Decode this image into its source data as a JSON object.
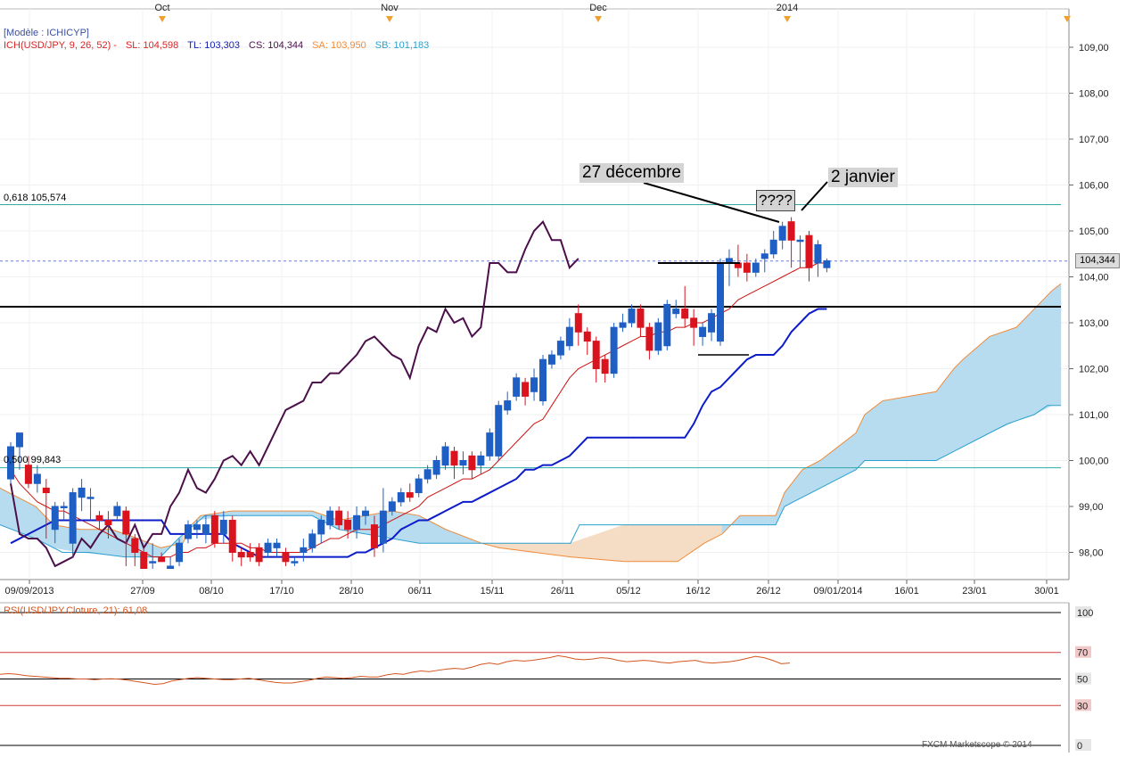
{
  "colors": {
    "bull": "#1f5fc4",
    "bear": "#d9141e",
    "tenkan": "#cc1111",
    "kijun": "#0c1cc8",
    "chikou": "#4b0f4a",
    "span_a": "#f08b3a",
    "span_b": "#2aa0d0",
    "cloud_up": "#b8dcef",
    "cloud_down": "#f5dcc4",
    "rsi": "#d4551e"
  },
  "top_months": [
    "Oct",
    "Nov",
    "Dec",
    "2014"
  ],
  "legend": {
    "model": "[Modèle : ICHICYP]",
    "ich": "ICH(USD/JPY, 9, 26, 52) -",
    "sl": "SL: 104,598",
    "tl": "TL: 103,303",
    "cs": "CS: 104,344",
    "sa": "SA: 103,950",
    "sb": "SB: 101,183"
  },
  "fib_top_label": "0,618 105,574",
  "fib_bottom_label": "0,500 99,843",
  "price_tag": "104,344",
  "annotations": {
    "date1": "27 décembre",
    "question": "????",
    "date2": "2 janvier"
  },
  "rsi_label": "RSI(USD/JPY.Cloture, 21): 61,08",
  "watermark": "FXCM Marketscope © 2014",
  "chart_data": {
    "type": "candlestick",
    "title": "",
    "instrument": "USD/JPY",
    "y_ticks": [
      "109,00",
      "108,00",
      "107,00",
      "106,00",
      "105,00",
      "104,00",
      "103,00",
      "102,00",
      "101,00",
      "100,00",
      "99,00",
      "98,00"
    ],
    "ylim": [
      97.6,
      109.6
    ],
    "x_ticks": [
      "09/09/2013",
      "27/09",
      "08/10",
      "17/10",
      "28/10",
      "06/11",
      "15/11",
      "26/11",
      "05/12",
      "16/12",
      "26/12",
      "09/01/2014",
      "16/01",
      "23/01",
      "30/01"
    ],
    "horizontal_levels": [
      {
        "label": "0,618",
        "value": 105.574
      },
      {
        "label": "0,500",
        "value": 99.843
      },
      {
        "label": "",
        "value": 103.35
      }
    ],
    "candles": [
      [
        99.6,
        100.3,
        99.5,
        100.4
      ],
      [
        100.3,
        100.6,
        99.8,
        100.5
      ],
      [
        99.9,
        99.5,
        99.4,
        100.1
      ],
      [
        99.5,
        99.7,
        99.3,
        99.9
      ],
      [
        99.4,
        99.3,
        98.3,
        99.6
      ],
      [
        98.5,
        99.0,
        98.2,
        99.1
      ],
      [
        99.0,
        99.0,
        98.7,
        99.1
      ],
      [
        98.2,
        99.3,
        97.9,
        99.4
      ],
      [
        99.2,
        99.4,
        98.9,
        99.6
      ],
      [
        99.2,
        99.2,
        98.7,
        99.4
      ],
      [
        98.8,
        98.7,
        98.5,
        98.9
      ],
      [
        98.7,
        98.6,
        98.3,
        98.9
      ],
      [
        98.8,
        99.0,
        98.7,
        99.1
      ],
      [
        98.9,
        98.4,
        97.7,
        99.0
      ],
      [
        98.3,
        98.0,
        97.7,
        98.4
      ],
      [
        98.0,
        97.6,
        97.5,
        98.1
      ],
      [
        97.8,
        97.8,
        97.6,
        98.2
      ],
      [
        97.9,
        97.8,
        97.8,
        98.0
      ],
      [
        97.5,
        97.7,
        97.4,
        97.9
      ],
      [
        97.8,
        98.2,
        97.7,
        98.3
      ],
      [
        98.3,
        98.6,
        98.2,
        98.7
      ],
      [
        98.5,
        98.6,
        98.3,
        98.7
      ],
      [
        98.4,
        98.6,
        98.2,
        98.8
      ],
      [
        98.8,
        98.2,
        98.1,
        98.9
      ],
      [
        98.4,
        98.7,
        98.2,
        98.9
      ],
      [
        98.7,
        98.0,
        97.8,
        98.8
      ],
      [
        98.0,
        97.9,
        97.7,
        98.1
      ],
      [
        98.0,
        97.9,
        97.8,
        98.2
      ],
      [
        98.1,
        97.8,
        97.7,
        98.2
      ],
      [
        98.0,
        98.2,
        97.9,
        98.3
      ],
      [
        98.1,
        98.2,
        97.9,
        98.3
      ],
      [
        98.0,
        97.8,
        97.7,
        98.1
      ],
      [
        97.8,
        97.8,
        97.7,
        97.9
      ],
      [
        98.0,
        98.1,
        97.8,
        98.3
      ],
      [
        98.1,
        98.4,
        98.0,
        98.5
      ],
      [
        98.4,
        98.7,
        98.2,
        98.8
      ],
      [
        98.6,
        98.9,
        98.5,
        99.0
      ],
      [
        98.9,
        98.6,
        98.5,
        99.0
      ],
      [
        98.7,
        98.5,
        98.3,
        98.9
      ],
      [
        98.5,
        98.8,
        98.3,
        99.0
      ],
      [
        98.8,
        98.9,
        98.6,
        99.0
      ],
      [
        98.6,
        98.1,
        97.9,
        98.8
      ],
      [
        98.2,
        98.9,
        98.0,
        99.4
      ],
      [
        98.9,
        99.1,
        98.8,
        99.2
      ],
      [
        99.1,
        99.3,
        99.0,
        99.4
      ],
      [
        99.3,
        99.2,
        99.1,
        99.5
      ],
      [
        99.3,
        99.6,
        99.2,
        99.7
      ],
      [
        99.6,
        99.8,
        99.5,
        99.9
      ],
      [
        99.7,
        100.0,
        99.6,
        100.1
      ],
      [
        99.9,
        100.3,
        99.8,
        100.4
      ],
      [
        100.2,
        99.9,
        99.6,
        100.3
      ],
      [
        99.9,
        100.0,
        99.7,
        100.2
      ],
      [
        100.1,
        99.8,
        99.6,
        100.2
      ],
      [
        99.9,
        100.1,
        99.7,
        100.2
      ],
      [
        100.1,
        100.6,
        100.0,
        100.7
      ],
      [
        100.1,
        101.2,
        100.0,
        101.3
      ],
      [
        101.1,
        101.3,
        101.0,
        101.5
      ],
      [
        101.4,
        101.8,
        101.3,
        101.9
      ],
      [
        101.7,
        101.4,
        101.2,
        101.8
      ],
      [
        101.5,
        101.8,
        101.3,
        102.0
      ],
      [
        101.3,
        102.2,
        101.2,
        102.3
      ],
      [
        102.1,
        102.3,
        102.0,
        102.4
      ],
      [
        102.3,
        102.6,
        102.2,
        102.7
      ],
      [
        102.5,
        102.9,
        102.4,
        103.1
      ],
      [
        103.2,
        102.8,
        102.5,
        103.4
      ],
      [
        102.8,
        102.6,
        102.3,
        102.9
      ],
      [
        102.6,
        102.0,
        101.7,
        102.7
      ],
      [
        102.2,
        101.9,
        101.7,
        102.3
      ],
      [
        101.9,
        102.9,
        101.8,
        103.0
      ],
      [
        102.9,
        103.0,
        102.8,
        103.2
      ],
      [
        103.0,
        103.3,
        102.9,
        103.4
      ],
      [
        103.3,
        102.9,
        102.7,
        103.4
      ],
      [
        102.9,
        102.4,
        102.2,
        103.0
      ],
      [
        102.4,
        103.0,
        102.3,
        103.1
      ],
      [
        102.5,
        103.4,
        102.4,
        103.5
      ],
      [
        103.2,
        103.3,
        103.1,
        103.5
      ],
      [
        103.3,
        103.1,
        102.9,
        103.8
      ],
      [
        103.1,
        102.9,
        102.5,
        103.3
      ],
      [
        102.7,
        102.9,
        102.5,
        103.0
      ],
      [
        102.8,
        103.2,
        102.6,
        103.3
      ],
      [
        102.6,
        104.3,
        102.5,
        104.4
      ],
      [
        104.3,
        104.4,
        103.8,
        104.6
      ],
      [
        104.3,
        104.2,
        104.0,
        104.7
      ],
      [
        104.3,
        104.1,
        103.9,
        104.5
      ],
      [
        104.1,
        104.3,
        104.0,
        104.4
      ],
      [
        104.4,
        104.5,
        104.1,
        104.6
      ],
      [
        104.5,
        104.8,
        104.4,
        105.0
      ],
      [
        104.8,
        105.1,
        104.6,
        105.2
      ],
      [
        105.2,
        104.8,
        104.2,
        105.3
      ],
      [
        104.8,
        104.8,
        104.2,
        104.9
      ],
      [
        104.9,
        104.2,
        103.9,
        105.0
      ],
      [
        104.3,
        104.7,
        104.0,
        104.8
      ],
      [
        104.2,
        104.35,
        104.1,
        104.4
      ]
    ],
    "tenkan": [
      99.8,
      99.5,
      99.3,
      99.1,
      99.0,
      98.9,
      98.9,
      98.8,
      98.7,
      98.6,
      98.5,
      98.4,
      98.3,
      98.2,
      98.1,
      98.0,
      97.9,
      97.9,
      97.9,
      98.0,
      98.0,
      98.1,
      98.1,
      98.2,
      98.2,
      98.2,
      98.2,
      98.1,
      98.1,
      98.0,
      98.0,
      98.0,
      98.0,
      98.0,
      98.1,
      98.2,
      98.3,
      98.3,
      98.4,
      98.5,
      98.5,
      98.5,
      98.6,
      98.7,
      98.8,
      98.9,
      99.0,
      99.2,
      99.3,
      99.4,
      99.5,
      99.6,
      99.6,
      99.7,
      99.8,
      100.0,
      100.2,
      100.4,
      100.6,
      100.8,
      100.9,
      101.2,
      101.5,
      101.8,
      102.0,
      102.1,
      102.2,
      102.3,
      102.4,
      102.5,
      102.6,
      102.7,
      102.7,
      102.8,
      102.8,
      102.9,
      102.9,
      103.0,
      103.0,
      103.1,
      103.2,
      103.3,
      103.5,
      103.6,
      103.7,
      103.8,
      103.9,
      104.0,
      104.1,
      104.2,
      104.2,
      104.3,
      104.3
    ],
    "kijun": [
      98.2,
      98.3,
      98.4,
      98.5,
      98.6,
      98.7,
      98.7,
      98.7,
      98.7,
      98.7,
      98.7,
      98.7,
      98.7,
      98.7,
      98.7,
      98.7,
      98.7,
      98.7,
      98.4,
      98.4,
      98.4,
      98.4,
      98.4,
      98.4,
      98.4,
      98.2,
      98.1,
      98.0,
      97.9,
      97.9,
      97.9,
      97.9,
      97.9,
      97.9,
      97.9,
      97.9,
      97.9,
      97.9,
      97.9,
      98.0,
      98.0,
      98.1,
      98.2,
      98.3,
      98.5,
      98.6,
      98.7,
      98.7,
      98.8,
      98.9,
      99.0,
      99.1,
      99.1,
      99.2,
      99.3,
      99.4,
      99.5,
      99.6,
      99.8,
      99.8,
      99.9,
      99.9,
      100.0,
      100.1,
      100.3,
      100.5,
      100.5,
      100.5,
      100.5,
      100.5,
      100.5,
      100.5,
      100.5,
      100.5,
      100.5,
      100.5,
      100.5,
      100.8,
      101.2,
      101.5,
      101.6,
      101.8,
      102.0,
      102.2,
      102.3,
      102.3,
      102.3,
      102.5,
      102.8,
      103.0,
      103.2,
      103.3,
      103.3
    ],
    "chikou": [
      99.5,
      98.4,
      98.3,
      98.3,
      98.1,
      97.7,
      97.8,
      97.9,
      98.3,
      98.1,
      98.4,
      98.6,
      98.3,
      98.2,
      98.6,
      98.1,
      98.4,
      98.4,
      99.0,
      99.3,
      99.8,
      99.4,
      99.3,
      99.6,
      100.0,
      100.1,
      99.9,
      100.2,
      99.9,
      100.3,
      100.7,
      101.1,
      101.2,
      101.3,
      101.7,
      101.7,
      101.9,
      101.9,
      102.1,
      102.3,
      102.6,
      102.7,
      102.5,
      102.3,
      102.2,
      101.8,
      102.5,
      102.9,
      102.8,
      103.3,
      103.0,
      103.1,
      102.7,
      102.9,
      104.3,
      104.3,
      104.1,
      104.1,
      104.6,
      105.0,
      105.2,
      104.8,
      104.8,
      104.2,
      104.4
    ]
  }
}
